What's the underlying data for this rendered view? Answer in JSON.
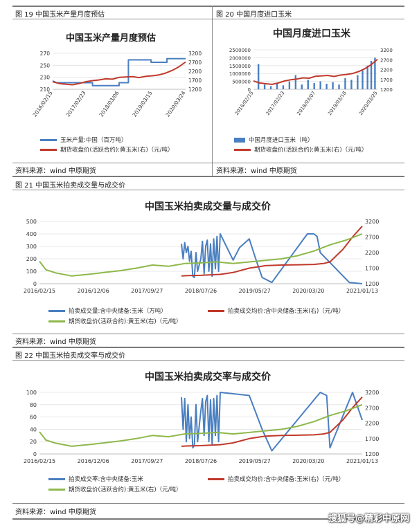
{
  "fig19": {
    "label": "图 19  中国玉米产量月度预估",
    "source": "资料来源：wind 中原期货"
  },
  "fig20": {
    "label": "图 20  中国月度进口玉米",
    "source": "资料来源：wind 中原期货"
  },
  "fig21": {
    "label": "图 21  中国玉米拍卖成交量与成交价",
    "source": "资料来源：wind 中原期货"
  },
  "fig22": {
    "label": "图 22  中国玉米拍卖成交率与成交价",
    "source": "资料来源：wind 中原期货"
  },
  "watermark": "搜狐号@精彩中原网",
  "colors": {
    "blue": "#4a7fc1",
    "red": "#c0392b",
    "green": "#8db84a"
  },
  "chart_data": [
    {
      "id": "c19",
      "type": "line",
      "title": "中国玉米产量月度预估",
      "x_ticks": [
        "2016/02/15",
        "2017/02/23",
        "2018/03/06",
        "2019/03/15",
        "2020/03/24"
      ],
      "y_left": {
        "ticks": [
          "270",
          "250",
          "230",
          "210"
        ],
        "range": [
          210,
          270
        ]
      },
      "y_right": {
        "ticks": [
          "3200",
          "2700",
          "2200",
          "1700",
          "1200"
        ],
        "range": [
          1200,
          3200
        ]
      },
      "grid": true,
      "legend_position": "bottom",
      "series": [
        {
          "name": "玉米产量:中国（百万吨）",
          "axis": "left",
          "color": "#4a7fc1",
          "x": [
            0,
            0.03,
            0.3,
            0.3,
            0.5,
            0.5,
            0.57,
            0.57,
            0.74,
            0.74,
            0.86,
            0.86,
            0.94,
            1.0
          ],
          "values": [
            224,
            221,
            221,
            216,
            216,
            221,
            221,
            259,
            259,
            255,
            255,
            261,
            261,
            261
          ]
        },
        {
          "name": "期货收盘价(活跃合约):黄玉米(右)（元/吨）",
          "axis": "right",
          "color": "#c0392b",
          "x": [
            0,
            0.05,
            0.1,
            0.15,
            0.2,
            0.25,
            0.3,
            0.35,
            0.4,
            0.45,
            0.5,
            0.55,
            0.6,
            0.65,
            0.7,
            0.75,
            0.8,
            0.85,
            0.9,
            0.95,
            1.0
          ],
          "values": [
            1620,
            1520,
            1480,
            1450,
            1520,
            1620,
            1680,
            1720,
            1780,
            1760,
            1860,
            1880,
            1900,
            1850,
            1920,
            1950,
            2000,
            2100,
            2250,
            2450,
            2720
          ]
        }
      ]
    },
    {
      "id": "c20",
      "type": "bar",
      "title": "中国月度进口玉米",
      "x_ticks": [
        "2016/02/15",
        "2017/02/23",
        "2018/03/07",
        "2019/03/18",
        "2020/03/25"
      ],
      "y_left": {
        "ticks": [
          "2500000",
          "2000000",
          "1500000",
          "1000000",
          "500000",
          "0"
        ],
        "range": [
          0,
          2500000
        ]
      },
      "y_right": {
        "ticks": [
          "3200",
          "2700",
          "2200",
          "1700",
          "1200"
        ],
        "range": [
          1200,
          3200
        ]
      },
      "grid": true,
      "legend_position": "bottom",
      "series": [
        {
          "name": "中国月度进口玉米（吨）",
          "axis": "left",
          "color": "#4a7fc1",
          "x": [
            0.04,
            0.09,
            0.14,
            0.19,
            0.24,
            0.29,
            0.34,
            0.39,
            0.44,
            0.49,
            0.54,
            0.59,
            0.64,
            0.69,
            0.74,
            0.79,
            0.84,
            0.88,
            0.92,
            0.95,
            0.98
          ],
          "values": [
            1600000,
            300000,
            200000,
            400000,
            250000,
            500000,
            900000,
            300000,
            600000,
            400000,
            500000,
            350000,
            450000,
            300000,
            700000,
            600000,
            900000,
            1200000,
            1500000,
            1800000,
            2000000
          ]
        },
        {
          "name": "期货收盘价(活跃合约):黄玉米(右)（元/吨）",
          "axis": "right",
          "color": "#c0392b",
          "x": [
            0,
            0.05,
            0.1,
            0.15,
            0.2,
            0.25,
            0.3,
            0.35,
            0.4,
            0.45,
            0.5,
            0.55,
            0.6,
            0.65,
            0.7,
            0.75,
            0.8,
            0.85,
            0.9,
            0.95,
            1.0
          ],
          "values": [
            1620,
            1520,
            1480,
            1450,
            1520,
            1620,
            1680,
            1720,
            1780,
            1760,
            1860,
            1880,
            1900,
            1850,
            1920,
            1950,
            2000,
            2100,
            2250,
            2450,
            2720
          ]
        }
      ]
    },
    {
      "id": "c21",
      "type": "line",
      "title": "中国玉米拍卖成交量与成交价",
      "x_ticks": [
        "2016/02/15",
        "2016/12/06",
        "2017/09/27",
        "2018/07/26",
        "2019/05/27",
        "2020/03/20",
        "2021/01/13"
      ],
      "y_left": {
        "ticks": [
          "500",
          "400",
          "300",
          "200",
          "100",
          "0"
        ],
        "range": [
          0,
          500
        ]
      },
      "y_right": {
        "ticks": [
          "3200",
          "2700",
          "2200",
          "1700",
          "1200"
        ],
        "range": [
          1200,
          3200
        ]
      },
      "grid": true,
      "legend_position": "bottom",
      "series": [
        {
          "name": "拍卖成交量:含中央储备:玉米（万吨）",
          "axis": "left",
          "color": "#4a7fc1",
          "x": [
            0.44,
            0.445,
            0.45,
            0.455,
            0.46,
            0.465,
            0.47,
            0.475,
            0.48,
            0.485,
            0.49,
            0.5,
            0.505,
            0.51,
            0.515,
            0.52,
            0.525,
            0.53,
            0.535,
            0.54,
            0.545,
            0.55,
            0.555,
            0.56,
            0.6,
            0.62,
            0.65,
            0.67,
            0.69,
            0.72,
            0.83,
            0.85,
            0.86,
            0.87,
            0.96,
            1.0
          ],
          "values": [
            320,
            200,
            330,
            250,
            300,
            180,
            260,
            60,
            50,
            250,
            100,
            200,
            340,
            80,
            300,
            350,
            100,
            320,
            60,
            360,
            120,
            380,
            100,
            400,
            190,
            290,
            360,
            200,
            50,
            10,
            400,
            400,
            380,
            250,
            10,
            0
          ]
        },
        {
          "name": "拍卖成交均价:含中央储备:玉米(右)（元/吨）",
          "axis": "right",
          "color": "#c0392b",
          "x": [
            0.44,
            0.46,
            0.5,
            0.52,
            0.56,
            0.6,
            0.65,
            0.7,
            0.75,
            0.8,
            0.85,
            0.88,
            0.9,
            0.94,
            0.97,
            1.0
          ],
          "values": [
            1450,
            1460,
            1470,
            1480,
            1500,
            1560,
            1700,
            1780,
            1800,
            1810,
            1820,
            1850,
            1900,
            2300,
            2700,
            3050
          ]
        },
        {
          "name": "期货收盘价(活跃合约):黄玉米(右)（元/吨）",
          "axis": "right",
          "color": "#8db84a",
          "x": [
            0,
            0.02,
            0.05,
            0.1,
            0.15,
            0.2,
            0.25,
            0.3,
            0.35,
            0.4,
            0.45,
            0.5,
            0.55,
            0.6,
            0.65,
            0.7,
            0.75,
            0.8,
            0.85,
            0.9,
            0.95,
            1.0
          ],
          "values": [
            1920,
            1650,
            1550,
            1450,
            1500,
            1560,
            1620,
            1700,
            1800,
            1760,
            1850,
            1870,
            1900,
            1850,
            1900,
            1950,
            2000,
            2100,
            2250,
            2450,
            2600,
            2800
          ]
        }
      ]
    },
    {
      "id": "c22",
      "type": "line",
      "title": "中国玉米拍卖成交率与成交价",
      "x_ticks": [
        "2016/02/15",
        "2016/12/06",
        "2017/09/27",
        "2018/07/26",
        "2019/05/27",
        "2020/03/20",
        "2021/01/13"
      ],
      "y_left": {
        "ticks": [
          "100",
          "80",
          "60",
          "40",
          "20",
          "0"
        ],
        "range": [
          0,
          100
        ]
      },
      "y_right": {
        "ticks": [
          "3200",
          "2700",
          "2200",
          "1700",
          "1200"
        ],
        "range": [
          1200,
          3200
        ]
      },
      "grid": true,
      "legend_position": "bottom",
      "series": [
        {
          "name": "拍卖成交率:含中央储备:玉米",
          "axis": "left",
          "color": "#4a7fc1",
          "x": [
            0.44,
            0.445,
            0.45,
            0.455,
            0.46,
            0.465,
            0.47,
            0.475,
            0.48,
            0.485,
            0.49,
            0.5,
            0.505,
            0.51,
            0.515,
            0.52,
            0.525,
            0.53,
            0.535,
            0.54,
            0.545,
            0.55,
            0.555,
            0.56,
            0.65,
            0.69,
            0.72,
            0.87,
            0.89,
            0.9,
            0.97,
            1.0
          ],
          "values": [
            92,
            40,
            90,
            20,
            80,
            25,
            60,
            10,
            15,
            80,
            20,
            70,
            90,
            30,
            85,
            95,
            20,
            88,
            15,
            90,
            30,
            95,
            20,
            100,
            95,
            40,
            5,
            100,
            95,
            10,
            100,
            55
          ]
        },
        {
          "name": "拍卖成交均价:含中央储备:玉米(右)（元/吨）",
          "axis": "right",
          "color": "#c0392b",
          "x": [
            0.44,
            0.46,
            0.5,
            0.52,
            0.56,
            0.6,
            0.65,
            0.7,
            0.75,
            0.8,
            0.85,
            0.88,
            0.9,
            0.94,
            0.97,
            1.0
          ],
          "values": [
            1450,
            1460,
            1470,
            1480,
            1500,
            1560,
            1700,
            1780,
            1800,
            1810,
            1820,
            1850,
            1900,
            2300,
            2700,
            3050
          ]
        },
        {
          "name": "期货收盘价(活跃合约):黄玉米(右)（元/吨）",
          "axis": "right",
          "color": "#8db84a",
          "x": [
            0,
            0.02,
            0.05,
            0.1,
            0.15,
            0.2,
            0.25,
            0.3,
            0.35,
            0.4,
            0.45,
            0.5,
            0.55,
            0.6,
            0.65,
            0.7,
            0.75,
            0.8,
            0.85,
            0.9,
            0.95,
            1.0
          ],
          "values": [
            1920,
            1650,
            1550,
            1450,
            1500,
            1560,
            1620,
            1700,
            1800,
            1760,
            1850,
            1870,
            1900,
            1850,
            1900,
            1950,
            2000,
            2100,
            2250,
            2450,
            2600,
            2800
          ]
        }
      ]
    }
  ]
}
